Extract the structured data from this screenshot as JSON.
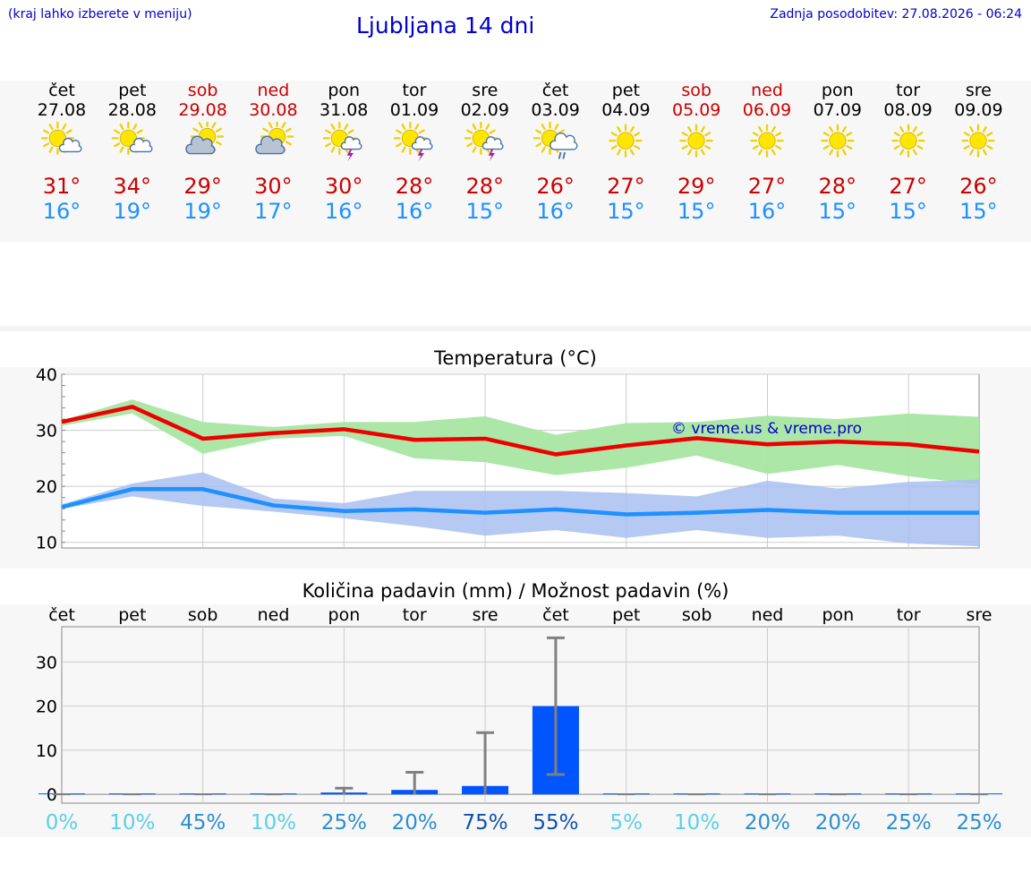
{
  "header": {
    "location_note": "(kraj lahko izberete v meniju)",
    "title": "Ljubljana 14 dni",
    "last_update": "Zadnja posodobitev: 27.08.2026 - 06:24"
  },
  "colors": {
    "link_blue": "#0000cc",
    "max_red": "#cc0000",
    "min_blue": "#1e90ff",
    "band_green": "#a8e6a3",
    "band_blue": "#a8bff0",
    "bar_blue": "#0055ff"
  },
  "days": [
    {
      "name": "čet",
      "date": "27.08",
      "weekend": false,
      "icon": "sun-cloud-icon",
      "tmax": "31°",
      "tmin": "16°"
    },
    {
      "name": "pet",
      "date": "28.08",
      "weekend": false,
      "icon": "sun-cloud-icon",
      "tmax": "34°",
      "tmin": "19°"
    },
    {
      "name": "sob",
      "date": "29.08",
      "weekend": true,
      "icon": "cloud-sun-icon",
      "tmax": "29°",
      "tmin": "19°"
    },
    {
      "name": "ned",
      "date": "30.08",
      "weekend": true,
      "icon": "cloud-sun-icon",
      "tmax": "30°",
      "tmin": "17°"
    },
    {
      "name": "pon",
      "date": "31.08",
      "weekend": false,
      "icon": "sun-thunder-icon",
      "tmax": "30°",
      "tmin": "16°"
    },
    {
      "name": "tor",
      "date": "01.09",
      "weekend": false,
      "icon": "sun-thunder-icon",
      "tmax": "28°",
      "tmin": "16°"
    },
    {
      "name": "sre",
      "date": "02.09",
      "weekend": false,
      "icon": "sun-thunder-icon",
      "tmax": "28°",
      "tmin": "15°"
    },
    {
      "name": "čet",
      "date": "03.09",
      "weekend": false,
      "icon": "sun-rain-icon",
      "tmax": "26°",
      "tmin": "16°"
    },
    {
      "name": "pet",
      "date": "04.09",
      "weekend": false,
      "icon": "sun-icon",
      "tmax": "27°",
      "tmin": "15°"
    },
    {
      "name": "sob",
      "date": "05.09",
      "weekend": true,
      "icon": "sun-icon",
      "tmax": "29°",
      "tmin": "15°"
    },
    {
      "name": "ned",
      "date": "06.09",
      "weekend": true,
      "icon": "sun-icon",
      "tmax": "27°",
      "tmin": "16°"
    },
    {
      "name": "pon",
      "date": "07.09",
      "weekend": false,
      "icon": "sun-icon",
      "tmax": "28°",
      "tmin": "15°"
    },
    {
      "name": "tor",
      "date": "08.09",
      "weekend": false,
      "icon": "sun-icon",
      "tmax": "27°",
      "tmin": "15°"
    },
    {
      "name": "sre",
      "date": "09.09",
      "weekend": false,
      "icon": "sun-icon",
      "tmax": "26°",
      "tmin": "15°"
    }
  ],
  "chart_data": [
    {
      "type": "line",
      "title": "Temperatura (°C)",
      "ylim": [
        9,
        40
      ],
      "yticks": [
        "10",
        "20",
        "30",
        "40"
      ],
      "watermark": "© vreme.us & vreme.pro",
      "grid": true,
      "series": [
        {
          "role": "max",
          "values": [
            31.5,
            34.2,
            28.5,
            29.5,
            30.2,
            28.3,
            28.5,
            25.7,
            27.3,
            28.6,
            27.5,
            28.0,
            27.5,
            26.2
          ],
          "band_low": [
            30.8,
            33.0,
            25.8,
            28.5,
            29.0,
            25.0,
            24.3,
            22.0,
            23.3,
            25.5,
            22.2,
            23.8,
            21.8,
            20.3
          ],
          "band_high": [
            31.8,
            35.5,
            31.5,
            30.6,
            31.5,
            31.5,
            32.5,
            29.2,
            31.3,
            31.5,
            32.6,
            32.0,
            33.0,
            32.4
          ]
        },
        {
          "role": "min",
          "values": [
            16.3,
            19.5,
            19.5,
            16.6,
            15.6,
            15.9,
            15.3,
            15.9,
            15.0,
            15.3,
            15.8,
            15.3,
            15.3,
            15.3
          ],
          "band_low": [
            16.0,
            18.2,
            16.5,
            15.5,
            14.3,
            12.9,
            11.2,
            12.2,
            10.8,
            12.2,
            10.8,
            11.2,
            9.8,
            9.3
          ],
          "band_high": [
            16.8,
            20.5,
            22.5,
            17.8,
            17.0,
            19.2,
            19.2,
            19.2,
            18.8,
            18.2,
            21.0,
            19.6,
            20.8,
            21.2
          ]
        }
      ]
    },
    {
      "type": "bar",
      "title": "Količina padavin (mm) / Možnost padavin (%)",
      "categories": [
        "čet",
        "pet",
        "sob",
        "ned",
        "pon",
        "tor",
        "sre",
        "čet",
        "pet",
        "sob",
        "ned",
        "pon",
        "tor",
        "sre"
      ],
      "values": [
        0,
        0,
        0,
        0,
        0.2,
        1.0,
        1.9,
        20,
        0,
        0,
        0,
        0,
        0,
        0
      ],
      "err_low": [
        0,
        0,
        0,
        0,
        0,
        0,
        0,
        4.5,
        0,
        0,
        0,
        0,
        0,
        0
      ],
      "err_high": [
        0,
        0,
        0,
        0,
        1.4,
        5.0,
        14.0,
        35.5,
        0,
        0,
        0,
        0,
        0,
        0
      ],
      "ylim": [
        -2,
        38
      ],
      "yticks": [
        "0",
        "10",
        "20",
        "30"
      ],
      "probabilities": [
        "0%",
        "10%",
        "45%",
        "10%",
        "25%",
        "20%",
        "75%",
        "55%",
        "5%",
        "10%",
        "20%",
        "20%",
        "25%",
        "25%"
      ],
      "prob_values": [
        0,
        10,
        45,
        10,
        25,
        20,
        75,
        55,
        5,
        10,
        20,
        20,
        25,
        25
      ]
    }
  ]
}
